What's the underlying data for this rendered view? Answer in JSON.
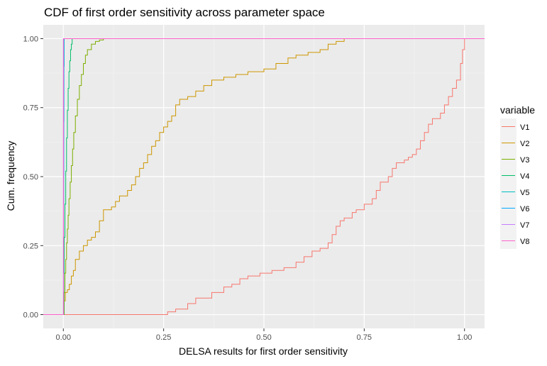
{
  "chart_data": {
    "type": "line",
    "title": "CDF of first order sensitivity across parameter space",
    "xlabel": "DELSA results for first order sensitivity",
    "ylabel": "Cum. frequency",
    "xlim": [
      -0.05,
      1.05
    ],
    "ylim": [
      -0.05,
      1.05
    ],
    "x_ticks": [
      "0.00",
      "0.25",
      "0.50",
      "0.75",
      "1.00"
    ],
    "y_ticks": [
      "0.00",
      "0.25",
      "0.50",
      "0.75",
      "1.00"
    ],
    "grid": true,
    "legend": {
      "title": "variable",
      "position": "right"
    },
    "series": [
      {
        "name": "V1",
        "color": "#F8766D",
        "points": [
          [
            -0.05,
            0
          ],
          [
            0.25,
            0
          ],
          [
            0.26,
            0.01
          ],
          [
            0.28,
            0.02
          ],
          [
            0.31,
            0.04
          ],
          [
            0.33,
            0.06
          ],
          [
            0.37,
            0.08
          ],
          [
            0.4,
            0.1
          ],
          [
            0.42,
            0.11
          ],
          [
            0.44,
            0.13
          ],
          [
            0.46,
            0.14
          ],
          [
            0.49,
            0.15
          ],
          [
            0.52,
            0.16
          ],
          [
            0.55,
            0.17
          ],
          [
            0.58,
            0.19
          ],
          [
            0.6,
            0.21
          ],
          [
            0.62,
            0.23
          ],
          [
            0.64,
            0.24
          ],
          [
            0.66,
            0.26
          ],
          [
            0.67,
            0.29
          ],
          [
            0.68,
            0.32
          ],
          [
            0.69,
            0.34
          ],
          [
            0.7,
            0.35
          ],
          [
            0.72,
            0.37
          ],
          [
            0.73,
            0.38
          ],
          [
            0.75,
            0.4
          ],
          [
            0.77,
            0.42
          ],
          [
            0.78,
            0.45
          ],
          [
            0.79,
            0.48
          ],
          [
            0.81,
            0.5
          ],
          [
            0.82,
            0.53
          ],
          [
            0.83,
            0.55
          ],
          [
            0.85,
            0.56
          ],
          [
            0.86,
            0.57
          ],
          [
            0.87,
            0.58
          ],
          [
            0.88,
            0.6
          ],
          [
            0.89,
            0.63
          ],
          [
            0.9,
            0.66
          ],
          [
            0.91,
            0.69
          ],
          [
            0.92,
            0.71
          ],
          [
            0.94,
            0.73
          ],
          [
            0.95,
            0.76
          ],
          [
            0.96,
            0.79
          ],
          [
            0.97,
            0.82
          ],
          [
            0.98,
            0.85
          ],
          [
            0.99,
            0.91
          ],
          [
            0.995,
            0.96
          ],
          [
            1.0,
            1.0
          ],
          [
            1.05,
            1.0
          ]
        ]
      },
      {
        "name": "V2",
        "color": "#CD9600",
        "points": [
          [
            -0.05,
            0
          ],
          [
            0.0,
            0.0
          ],
          [
            0.002,
            0.05
          ],
          [
            0.005,
            0.08
          ],
          [
            0.01,
            0.09
          ],
          [
            0.015,
            0.11
          ],
          [
            0.02,
            0.14
          ],
          [
            0.025,
            0.16
          ],
          [
            0.03,
            0.2
          ],
          [
            0.04,
            0.23
          ],
          [
            0.05,
            0.25
          ],
          [
            0.06,
            0.27
          ],
          [
            0.07,
            0.28
          ],
          [
            0.08,
            0.3
          ],
          [
            0.09,
            0.34
          ],
          [
            0.1,
            0.38
          ],
          [
            0.12,
            0.39
          ],
          [
            0.13,
            0.41
          ],
          [
            0.14,
            0.43
          ],
          [
            0.16,
            0.45
          ],
          [
            0.17,
            0.47
          ],
          [
            0.18,
            0.5
          ],
          [
            0.19,
            0.53
          ],
          [
            0.2,
            0.55
          ],
          [
            0.21,
            0.58
          ],
          [
            0.22,
            0.61
          ],
          [
            0.23,
            0.63
          ],
          [
            0.24,
            0.66
          ],
          [
            0.25,
            0.68
          ],
          [
            0.26,
            0.7
          ],
          [
            0.27,
            0.72
          ],
          [
            0.28,
            0.76
          ],
          [
            0.29,
            0.78
          ],
          [
            0.31,
            0.79
          ],
          [
            0.33,
            0.81
          ],
          [
            0.35,
            0.83
          ],
          [
            0.37,
            0.85
          ],
          [
            0.4,
            0.86
          ],
          [
            0.43,
            0.87
          ],
          [
            0.46,
            0.88
          ],
          [
            0.5,
            0.89
          ],
          [
            0.53,
            0.91
          ],
          [
            0.56,
            0.93
          ],
          [
            0.58,
            0.94
          ],
          [
            0.61,
            0.95
          ],
          [
            0.64,
            0.96
          ],
          [
            0.66,
            0.98
          ],
          [
            0.68,
            0.99
          ],
          [
            0.7,
            1.0
          ],
          [
            1.05,
            1.0
          ]
        ]
      },
      {
        "name": "V3",
        "color": "#7CAE00",
        "points": [
          [
            -0.05,
            0
          ],
          [
            0.0,
            0.0
          ],
          [
            0.002,
            0.08
          ],
          [
            0.004,
            0.15
          ],
          [
            0.006,
            0.2
          ],
          [
            0.008,
            0.26
          ],
          [
            0.01,
            0.31
          ],
          [
            0.012,
            0.36
          ],
          [
            0.014,
            0.42
          ],
          [
            0.017,
            0.48
          ],
          [
            0.02,
            0.54
          ],
          [
            0.023,
            0.6
          ],
          [
            0.026,
            0.66
          ],
          [
            0.03,
            0.72
          ],
          [
            0.035,
            0.78
          ],
          [
            0.04,
            0.83
          ],
          [
            0.045,
            0.87
          ],
          [
            0.05,
            0.91
          ],
          [
            0.055,
            0.94
          ],
          [
            0.06,
            0.96
          ],
          [
            0.07,
            0.98
          ],
          [
            0.08,
            0.99
          ],
          [
            0.09,
            0.995
          ],
          [
            0.1,
            1.0
          ],
          [
            1.05,
            1.0
          ]
        ]
      },
      {
        "name": "V4",
        "color": "#00BE67",
        "points": [
          [
            -0.05,
            0
          ],
          [
            0.0,
            0.0
          ],
          [
            0.001,
            0.15
          ],
          [
            0.002,
            0.28
          ],
          [
            0.004,
            0.4
          ],
          [
            0.006,
            0.52
          ],
          [
            0.008,
            0.64
          ],
          [
            0.01,
            0.74
          ],
          [
            0.012,
            0.82
          ],
          [
            0.014,
            0.88
          ],
          [
            0.016,
            0.92
          ],
          [
            0.018,
            0.96
          ],
          [
            0.02,
            0.98
          ],
          [
            0.022,
            1.0
          ],
          [
            1.05,
            1.0
          ]
        ]
      },
      {
        "name": "V5",
        "color": "#00BFC4",
        "points": [
          [
            -0.05,
            0
          ],
          [
            0.0,
            0.0
          ],
          [
            0.0005,
            0.4
          ],
          [
            0.001,
            0.7
          ],
          [
            0.0015,
            0.9
          ],
          [
            0.002,
            1.0
          ],
          [
            1.05,
            1.0
          ]
        ]
      },
      {
        "name": "V6",
        "color": "#00A9FF",
        "points": [
          [
            -0.05,
            0
          ],
          [
            0.0,
            0.0
          ],
          [
            0.0005,
            0.5
          ],
          [
            0.001,
            1.0
          ],
          [
            1.05,
            1.0
          ]
        ]
      },
      {
        "name": "V7",
        "color": "#C77CFF",
        "points": [
          [
            -0.05,
            0
          ],
          [
            0.0,
            0.0
          ],
          [
            0.0002,
            1.0
          ],
          [
            1.05,
            1.0
          ]
        ]
      },
      {
        "name": "V8",
        "color": "#FF61CC",
        "points": [
          [
            -0.05,
            0
          ],
          [
            0.0,
            0.0
          ],
          [
            0.0001,
            1.0
          ],
          [
            1.05,
            1.0
          ]
        ]
      }
    ]
  }
}
